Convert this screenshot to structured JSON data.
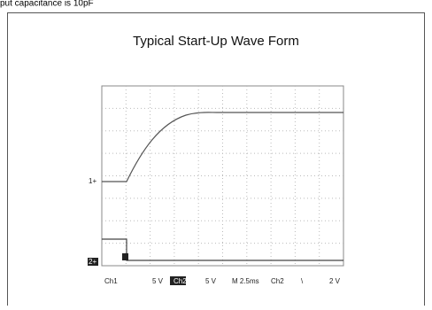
{
  "header": {
    "caption_fragment": "put capacitance is 10pF"
  },
  "figure": {
    "title": "Typical Start-Up Wave Form",
    "scope": {
      "markers": [
        "1+",
        "2+"
      ],
      "readout": [
        "Ch1",
        "5 V",
        "Ch2",
        "5 V",
        "M 2.5ms",
        "Ch2",
        "\\",
        "2 V"
      ]
    }
  }
}
